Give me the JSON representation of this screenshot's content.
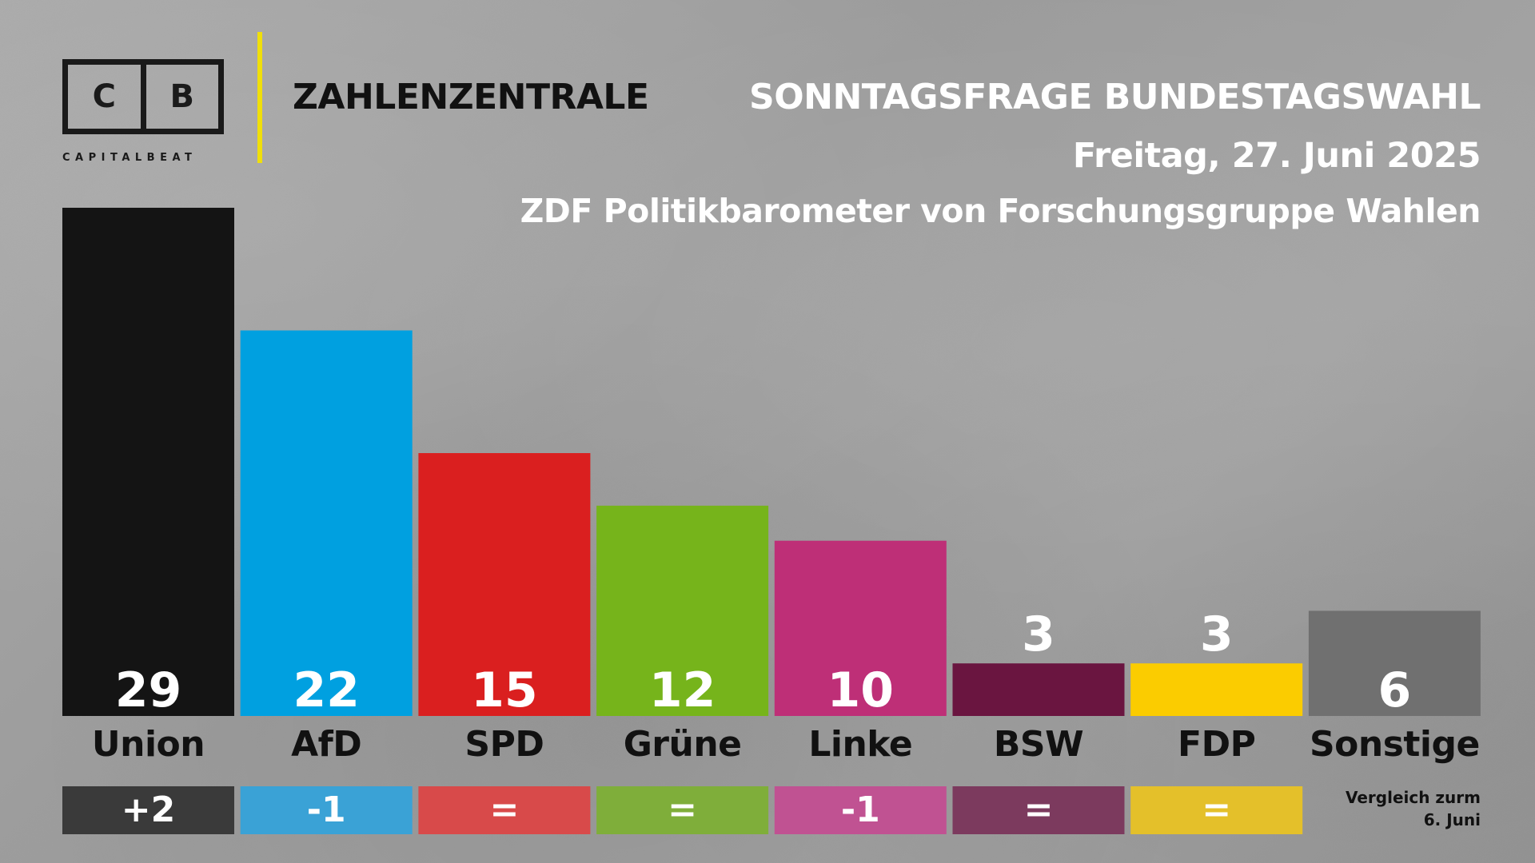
{
  "logo": {
    "letter1": "C",
    "letter2": "B",
    "subtitle": "CAPITALBEAT"
  },
  "brand_title": "ZAHLENZENTRALE",
  "header": {
    "title": "SONNTAGSFRAGE BUNDESTAGSWAHL",
    "date": "Freitag, 27. Juni 2025",
    "source": "ZDF Politikbarometer von Forschungsgruppe Wahlen"
  },
  "comparison_note": {
    "line1": "Vergleich zurm",
    "line2": "6. Juni"
  },
  "chart_data": {
    "type": "bar",
    "title": "SONNTAGSFRAGE BUNDESTAGSWAHL",
    "subtitle": "ZDF Politikbarometer von Forschungsgruppe Wahlen",
    "categories": [
      "Union",
      "AfD",
      "SPD",
      "Grüne",
      "Linke",
      "BSW",
      "FDP",
      "Sonstige"
    ],
    "values": [
      29,
      22,
      15,
      12,
      10,
      3,
      3,
      6
    ],
    "value_labels": [
      "29",
      "22",
      "15",
      "12",
      "10",
      "3",
      "3",
      "6"
    ],
    "changes": [
      "+2",
      "-1",
      "=",
      "=",
      "-1",
      "=",
      "=",
      ""
    ],
    "colors": [
      "#141414",
      "#00a0e0",
      "#da1f1f",
      "#76b41b",
      "#be2f77",
      "#6a1540",
      "#fbcc00",
      "#707070"
    ],
    "change_colors": [
      "#3a3a3a",
      "#3aa2d6",
      "#d84a4a",
      "#7fae3a",
      "#c05292",
      "#7c3a5e",
      "#e4c02a",
      ""
    ],
    "ylim": [
      0,
      29
    ],
    "xlabel": "",
    "ylabel": "",
    "grid": false,
    "legend": "none"
  }
}
